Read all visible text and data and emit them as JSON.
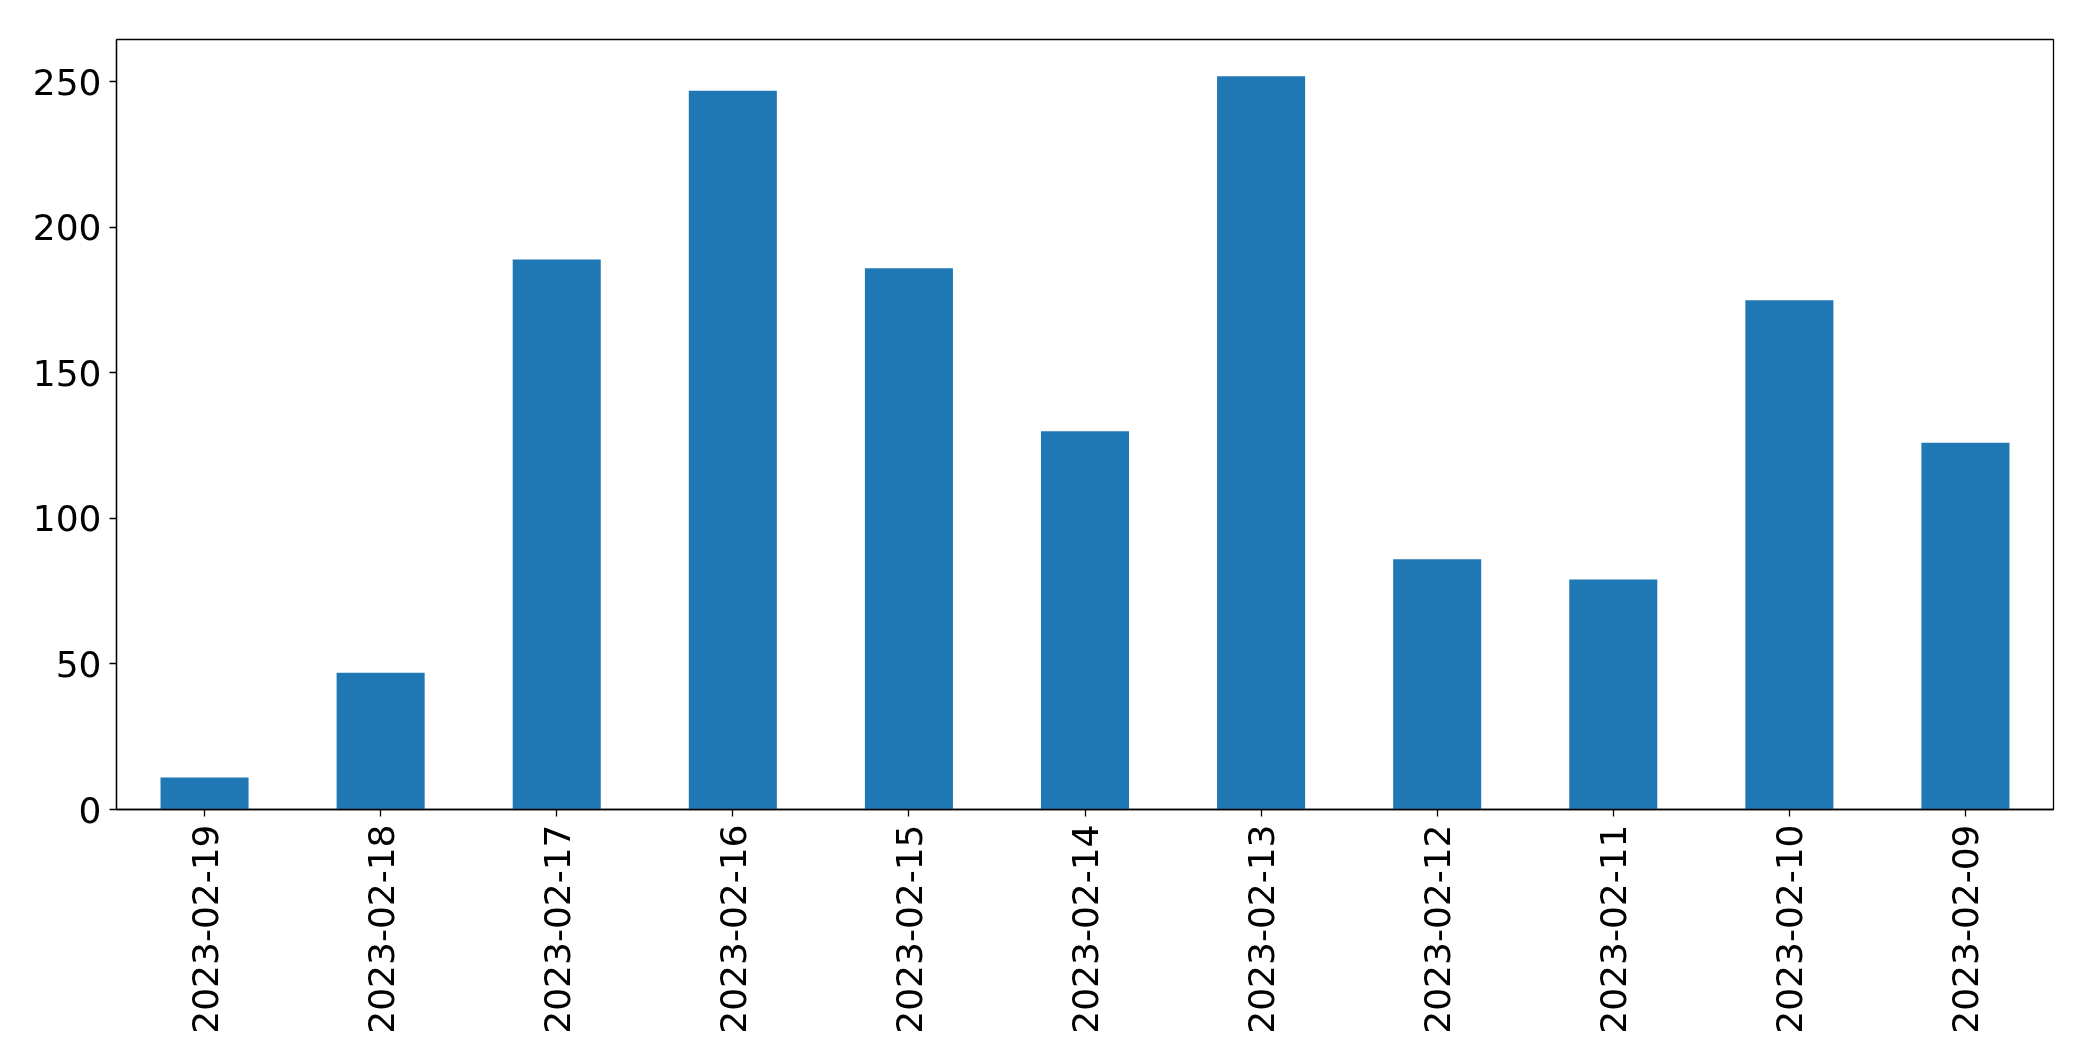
{
  "chart_data": {
    "type": "bar",
    "categories": [
      "2023-02-19",
      "2023-02-18",
      "2023-02-17",
      "2023-02-16",
      "2023-02-15",
      "2023-02-14",
      "2023-02-13",
      "2023-02-12",
      "2023-02-11",
      "2023-02-10",
      "2023-02-09"
    ],
    "values": [
      11,
      47,
      189,
      247,
      186,
      130,
      252,
      86,
      79,
      175,
      126
    ],
    "color": "#1f77b4",
    "ylim": [
      0,
      264.6
    ],
    "yticks": [
      0,
      50,
      100,
      150,
      200,
      250
    ]
  }
}
